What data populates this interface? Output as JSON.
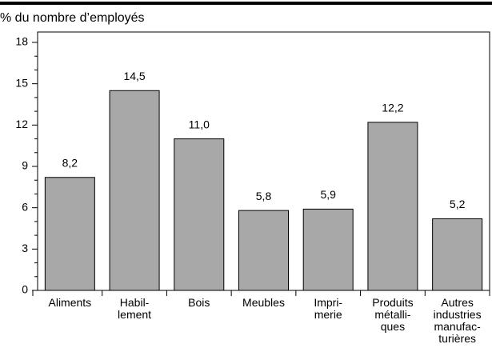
{
  "chart_data": {
    "type": "bar",
    "title": "% du nombre d’employés",
    "categories": [
      [
        "Aliments"
      ],
      [
        "Habil-",
        "lement"
      ],
      [
        "Bois"
      ],
      [
        "Meubles"
      ],
      [
        "Impri-",
        "merie"
      ],
      [
        "Produits",
        "métalli-",
        "ques"
      ],
      [
        "Autres",
        "industries",
        "manufac-",
        "turières"
      ]
    ],
    "values": [
      8.2,
      14.5,
      11.0,
      5.8,
      5.9,
      12.2,
      5.2
    ],
    "value_labels": [
      "8,2",
      "14,5",
      "11,0",
      "5,8",
      "5,9",
      "12,2",
      "5,2"
    ],
    "color": "#a8a8a8",
    "ylim": [
      0,
      18
    ],
    "yticks": [
      0,
      3,
      6,
      9,
      12,
      15,
      18
    ]
  }
}
